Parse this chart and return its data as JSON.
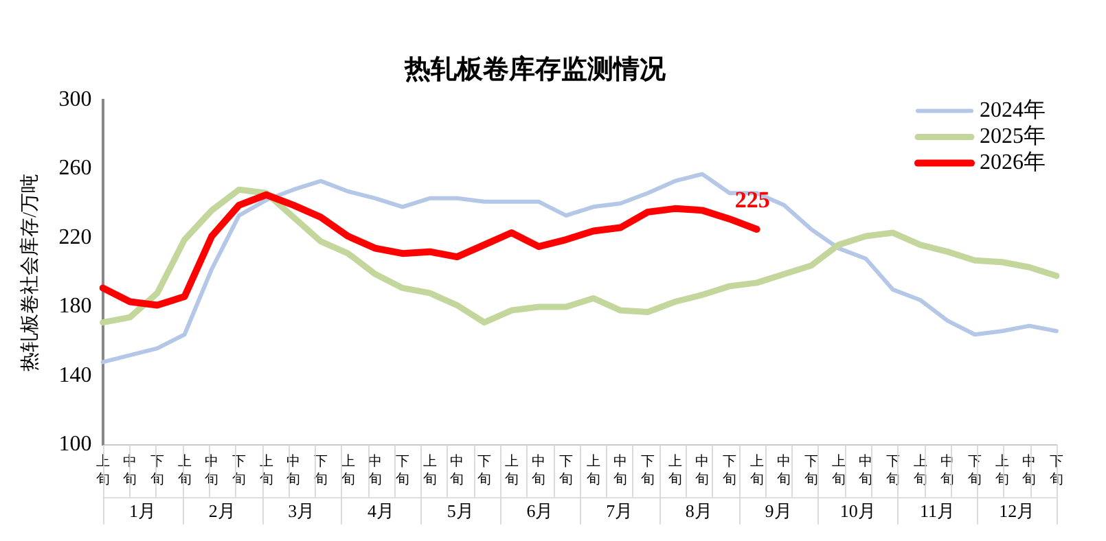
{
  "chart_data": {
    "type": "line",
    "title": "热轧板卷库存监测情况",
    "ylabel": "热轧板卷社会库存/万吨",
    "categories": [
      "上旬",
      "中旬",
      "下旬",
      "上旬",
      "中旬",
      "下旬",
      "上旬",
      "中旬",
      "下旬",
      "上旬",
      "中旬",
      "下旬",
      "上旬",
      "中旬",
      "下旬",
      "上旬",
      "中旬",
      "下旬",
      "上旬",
      "中旬",
      "下旬",
      "上旬",
      "中旬",
      "下旬",
      "上旬",
      "中旬",
      "下旬",
      "上旬",
      "中旬",
      "下旬",
      "上旬",
      "中旬",
      "下旬",
      "上旬",
      "中旬",
      "下旬"
    ],
    "annotations": [
      "1月",
      "2月",
      "3月",
      "4月",
      "5月",
      "6月",
      "7月",
      "8月",
      "9月",
      "10月",
      "11月",
      "12月"
    ],
    "series": [
      {
        "name": "2024年",
        "color": "#b4c7e7",
        "values": [
          148,
          152,
          156,
          164,
          202,
          233,
          242,
          248,
          253,
          247,
          243,
          238,
          243,
          243,
          241,
          241,
          241,
          233,
          238,
          240,
          246,
          253,
          257,
          246,
          246,
          239,
          225,
          214,
          208,
          190,
          184,
          172,
          164,
          166,
          169,
          166
        ]
      },
      {
        "name": "2025年",
        "color": "#c3d69b",
        "values": [
          171,
          174,
          188,
          219,
          236,
          248,
          246,
          232,
          218,
          211,
          199,
          191,
          188,
          181,
          171,
          178,
          180,
          180,
          185,
          178,
          177,
          183,
          187,
          192,
          194,
          199,
          204,
          216,
          221,
          223,
          216,
          212,
          207,
          206,
          203,
          198
        ]
      },
      {
        "name": "2026年",
        "color": "#ff0000",
        "values": [
          191,
          183,
          181,
          186,
          221,
          239,
          245,
          239,
          232,
          221,
          214,
          211,
          212,
          209,
          216,
          223,
          215,
          219,
          224,
          226,
          235,
          237,
          236,
          231,
          225,
          null,
          null,
          null,
          null,
          null,
          null,
          null,
          null,
          null,
          null,
          null
        ],
        "value_labels": [
          null,
          null,
          null,
          null,
          null,
          null,
          null,
          null,
          null,
          null,
          null,
          null,
          null,
          null,
          null,
          null,
          null,
          null,
          null,
          null,
          null,
          null,
          null,
          null,
          "225",
          null,
          null,
          null,
          null,
          null,
          null,
          null,
          null,
          null,
          null,
          null
        ]
      }
    ],
    "ylim": [
      100,
      300
    ],
    "yticks": [
      100,
      140,
      180,
      220,
      260,
      300
    ],
    "grid": false,
    "legend": "top right",
    "marker": "none",
    "line_style": "solid"
  }
}
